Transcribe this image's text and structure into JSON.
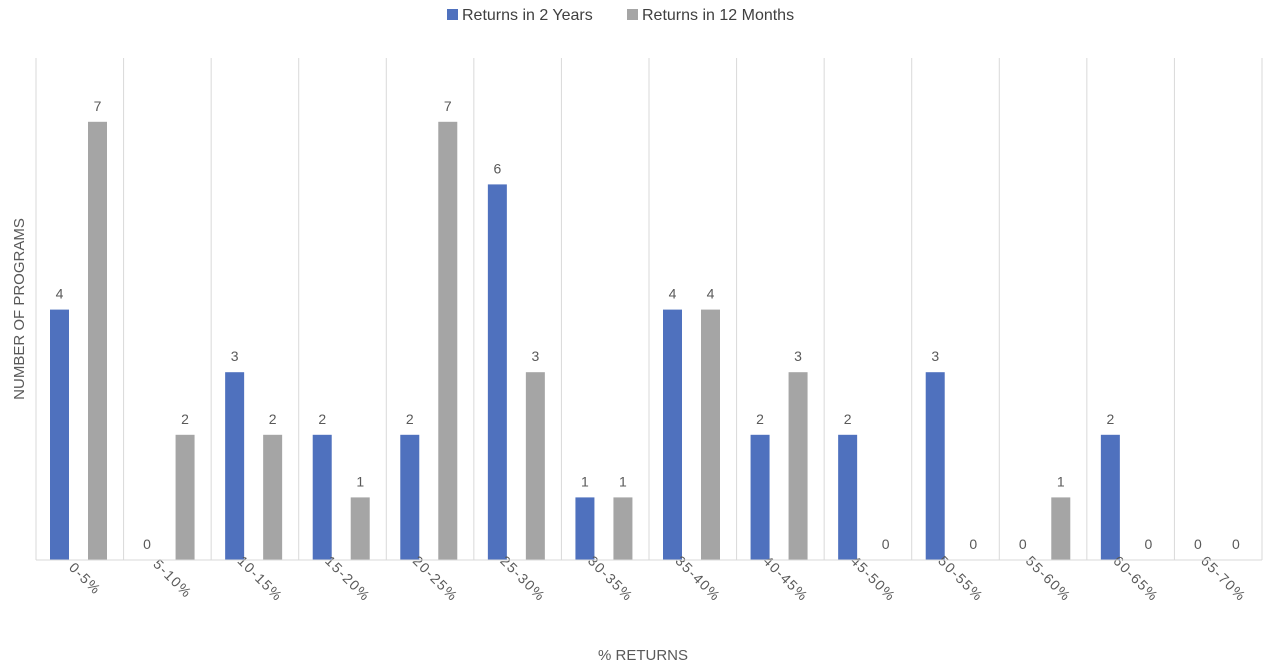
{
  "chart_data": {
    "type": "bar",
    "title": "",
    "xlabel": "% RETURNS",
    "ylabel": "NUMBER OF PROGRAMS",
    "categories": [
      "0-5%",
      "5-10%",
      "10-15%",
      "15-20%",
      "20-25%",
      "25-30%",
      "30-35%",
      "35-40%",
      "40-45%",
      "45-50%",
      "50-55%",
      "55-60%",
      "60-65%",
      "65-70%"
    ],
    "series": [
      {
        "name": "Returns in 2 Years",
        "color": "#4f71be",
        "values": [
          4,
          0,
          3,
          2,
          2,
          6,
          1,
          4,
          2,
          2,
          3,
          0,
          2,
          0
        ]
      },
      {
        "name": "Returns in 12 Months",
        "color": "#a5a5a5",
        "values": [
          7,
          2,
          2,
          1,
          7,
          3,
          1,
          4,
          3,
          0,
          0,
          1,
          0,
          0
        ]
      }
    ],
    "ylim": [
      0,
      7
    ],
    "grid": "vertical category separators",
    "legend": "top-center",
    "data_labels": true
  }
}
